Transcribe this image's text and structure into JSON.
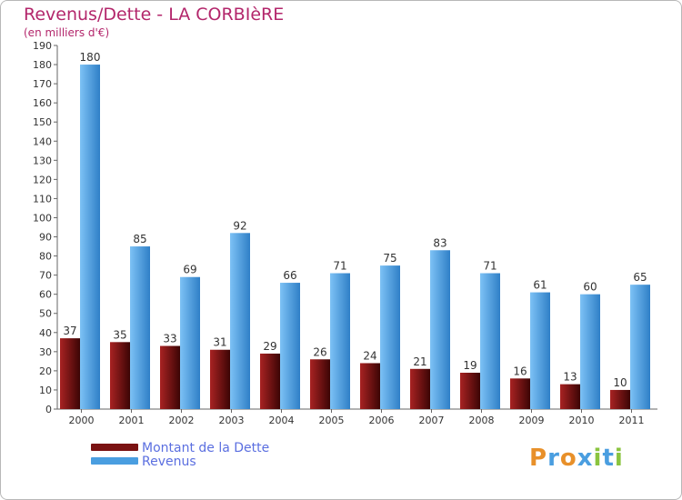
{
  "chart_data": {
    "type": "bar",
    "title": "Revenus/Dette - LA CORBIèRE",
    "subtitle": "(en milliers d'€)",
    "categories": [
      "2000",
      "2001",
      "2002",
      "2003",
      "2004",
      "2005",
      "2006",
      "2007",
      "2008",
      "2009",
      "2010",
      "2011"
    ],
    "series": [
      {
        "name": "Montant de la Dette",
        "color": "#7a1212",
        "values": [
          37,
          35,
          33,
          31,
          29,
          26,
          24,
          21,
          19,
          16,
          13,
          10
        ]
      },
      {
        "name": "Revenus",
        "color": "#4a9ee0",
        "values": [
          180,
          85,
          69,
          92,
          66,
          71,
          75,
          83,
          71,
          61,
          60,
          65
        ]
      }
    ],
    "ylim": [
      0,
      190
    ],
    "ytick_step": 10,
    "xlabel": "",
    "ylabel": "",
    "grid": false,
    "legend_position": "bottom-left",
    "title_color": "#b3266b",
    "legend_text_color": "#5b6fe0"
  },
  "brand": {
    "logo_text": "Proxiti",
    "logo_colors": [
      "#e8902a",
      "#4a9ee0",
      "#e8902a",
      "#4a9ee0",
      "#8ac43f",
      "#4a9ee0",
      "#8ac43f"
    ]
  }
}
